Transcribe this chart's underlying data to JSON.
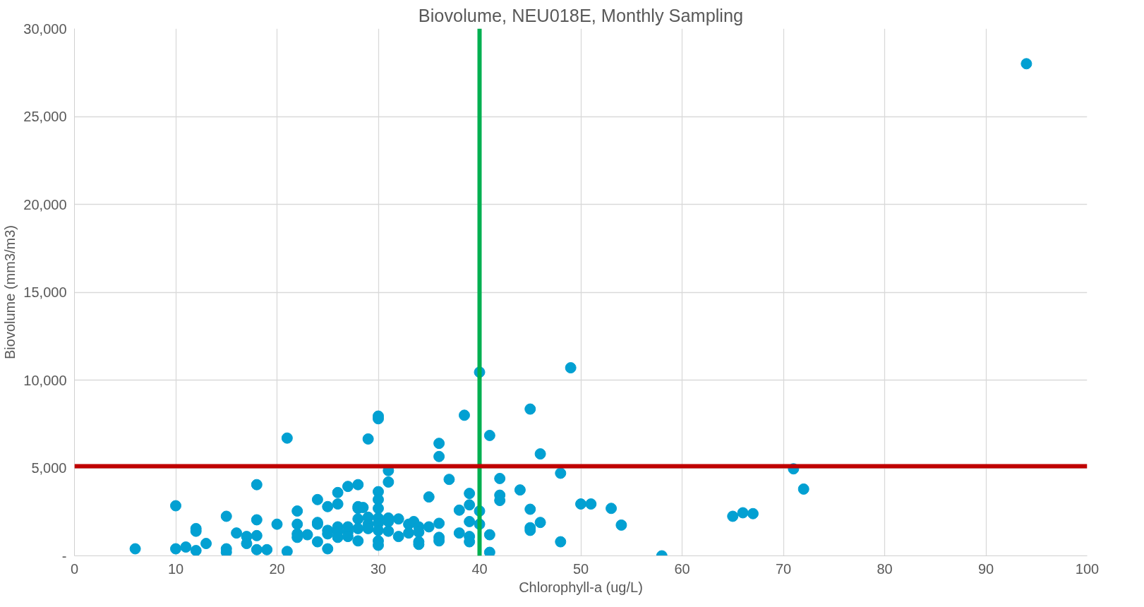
{
  "chart_data": {
    "type": "scatter",
    "title": "Biovolume, NEU018E, Monthly Sampling",
    "xlabel": "Chlorophyll-a (ug/L)",
    "ylabel": "Biovolume (mm3/m3)",
    "xlim": [
      0,
      100
    ],
    "xticks": [
      0,
      10,
      20,
      30,
      40,
      50,
      60,
      70,
      80,
      90,
      100
    ],
    "ylim": [
      0,
      30000
    ],
    "yticks": [
      {
        "value": 0,
        "label": "-"
      },
      {
        "value": 5000,
        "label": "5,000"
      },
      {
        "value": 10000,
        "label": "10,000"
      },
      {
        "value": 15000,
        "label": "15,000"
      },
      {
        "value": 20000,
        "label": "20,000"
      },
      {
        "value": 25000,
        "label": "25,000"
      },
      {
        "value": 30000,
        "label": "30,000"
      }
    ],
    "grid": true,
    "marker": "circle",
    "ref_lines": [
      {
        "axis": "x",
        "value": 40,
        "color": "#00b050"
      },
      {
        "axis": "y",
        "value": 5100,
        "color": "#c00000"
      }
    ],
    "series": [
      {
        "color": "#02a0d2",
        "x": [
          6,
          10,
          10,
          11,
          12,
          12,
          12,
          13,
          15,
          15,
          15,
          16,
          17,
          17,
          18,
          18,
          18,
          18,
          19,
          20,
          21,
          21,
          22,
          22,
          22,
          22,
          23,
          24,
          24,
          24,
          24,
          25,
          25,
          25,
          25,
          26,
          26,
          26,
          26,
          26,
          27,
          27,
          27,
          27,
          28,
          28,
          28,
          28,
          28,
          28,
          28.5,
          29,
          29,
          29,
          29,
          30,
          30,
          30,
          30,
          30,
          30,
          30,
          30,
          30,
          30,
          31,
          31,
          31,
          31,
          31,
          32,
          32,
          33,
          33,
          33.5,
          34,
          34,
          34,
          34,
          35,
          35,
          36,
          36,
          36,
          36,
          36,
          37,
          38,
          38,
          38.5,
          39,
          39,
          39,
          39,
          39,
          40,
          40,
          40,
          41,
          41,
          41,
          42,
          42,
          42,
          44,
          45,
          45,
          45,
          45,
          46,
          46,
          48,
          48,
          49,
          50,
          51,
          53,
          54,
          58,
          65,
          66,
          67,
          71,
          72,
          94
        ],
        "values": [
          400,
          2850,
          400,
          500,
          1550,
          1400,
          300,
          700,
          2250,
          400,
          200,
          1300,
          1100,
          700,
          4050,
          2050,
          1150,
          350,
          350,
          1800,
          6700,
          250,
          2550,
          1800,
          1250,
          1050,
          1200,
          3200,
          1900,
          1800,
          800,
          2800,
          1450,
          1250,
          400,
          3600,
          2950,
          1650,
          1400,
          1050,
          3950,
          1650,
          1350,
          1100,
          4050,
          2800,
          2700,
          2100,
          1550,
          850,
          2750,
          6650,
          2200,
          1800,
          1550,
          7950,
          7800,
          3650,
          3200,
          2700,
          2150,
          1850,
          1450,
          850,
          600,
          4850,
          4200,
          2150,
          1950,
          1400,
          2100,
          1100,
          1800,
          1300,
          1950,
          1650,
          1350,
          800,
          650,
          3350,
          1650,
          6400,
          5650,
          1850,
          1050,
          850,
          4350,
          2600,
          1300,
          8000,
          3550,
          2900,
          1950,
          1100,
          800,
          10450,
          2550,
          1800,
          6850,
          1200,
          200,
          4400,
          3450,
          3150,
          3750,
          8350,
          2650,
          1600,
          1450,
          5800,
          1900,
          4700,
          800,
          10700,
          2950,
          2950,
          2700,
          1750,
          0,
          2250,
          2450,
          2400,
          4950,
          3800,
          28000
        ]
      }
    ]
  }
}
